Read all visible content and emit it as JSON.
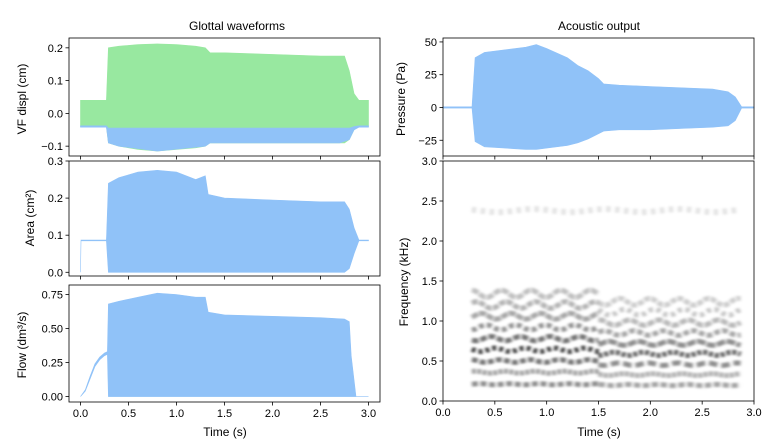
{
  "chart_data": [
    {
      "type": "area",
      "title": "Glottal waveforms",
      "xlabel": "",
      "ylabel": "VF displ (cm)",
      "xlim": [
        -0.12,
        3.12
      ],
      "ylim": [
        -0.13,
        0.23
      ],
      "xticks": [
        0.0,
        0.5,
        1.0,
        1.5,
        2.0,
        2.5,
        3.0
      ],
      "xtick_labels": [
        "",
        "",
        "",
        "",
        "",
        "",
        ""
      ],
      "yticks": [
        -0.1,
        0.0,
        0.1,
        0.2
      ],
      "ytick_labels": [
        "−0.1",
        "0.0",
        "0.1",
        "0.2"
      ],
      "colors": {
        "upper": "#98e8a0",
        "lower": "#90c2f8"
      },
      "series": [
        {
          "x": [
            0.0,
            0.27,
            0.29,
            0.4,
            0.6,
            0.8,
            1.0,
            1.2,
            1.3,
            1.35,
            1.5,
            2.0,
            2.5,
            2.75,
            2.8,
            2.85,
            2.9,
            3.0
          ],
          "upper": [
            0.04,
            0.04,
            0.2,
            0.205,
            0.21,
            0.212,
            0.21,
            0.205,
            0.2,
            0.185,
            0.185,
            0.18,
            0.175,
            0.175,
            0.13,
            0.06,
            0.04,
            0.04
          ],
          "lower": [
            -0.04,
            -0.04,
            -0.09,
            -0.1,
            -0.11,
            -0.115,
            -0.11,
            -0.105,
            -0.1,
            -0.09,
            -0.09,
            -0.09,
            -0.09,
            -0.09,
            -0.08,
            -0.05,
            -0.04,
            -0.04
          ]
        },
        {
          "x": [
            0.0,
            0.27,
            0.29,
            0.4,
            0.8,
            1.3,
            1.35,
            2.0,
            2.7,
            2.8,
            2.85,
            2.9,
            3.0
          ],
          "upper": [
            -0.038,
            -0.038,
            -0.045,
            -0.045,
            -0.045,
            -0.045,
            -0.045,
            -0.045,
            -0.045,
            -0.045,
            -0.04,
            -0.038,
            -0.038
          ],
          "lower": [
            -0.042,
            -0.042,
            -0.09,
            -0.1,
            -0.115,
            -0.1,
            -0.09,
            -0.09,
            -0.09,
            -0.08,
            -0.05,
            -0.042,
            -0.042
          ]
        }
      ]
    },
    {
      "type": "area",
      "title": "Acoustic output",
      "xlabel": "",
      "ylabel": "Pressure (Pa)",
      "xlim": [
        0.0,
        3.0
      ],
      "ylim": [
        -37,
        53
      ],
      "xticks": [
        0.0,
        0.5,
        1.0,
        1.5,
        2.0,
        2.5,
        3.0
      ],
      "xtick_labels": [
        "",
        "",
        "",
        "",
        "",
        "",
        ""
      ],
      "yticks": [
        -25,
        0,
        25,
        50
      ],
      "ytick_labels": [
        "−25",
        "0",
        "25",
        "50"
      ],
      "colors": {
        "fill": "#90c2f8"
      },
      "series": [
        {
          "x": [
            0.0,
            0.28,
            0.31,
            0.4,
            0.6,
            0.8,
            0.9,
            1.0,
            1.2,
            1.3,
            1.4,
            1.5,
            1.55,
            1.7,
            2.0,
            2.3,
            2.6,
            2.75,
            2.82,
            2.88,
            3.0
          ],
          "upper": [
            0.5,
            0.5,
            38,
            42,
            44,
            46,
            48,
            45,
            38,
            32,
            28,
            22,
            18,
            17,
            16,
            15,
            14,
            12,
            8,
            0.5,
            0.5
          ],
          "lower": [
            -0.5,
            -0.5,
            -26,
            -30,
            -31,
            -32,
            -32,
            -31,
            -29,
            -27,
            -24,
            -20,
            -18,
            -17,
            -17,
            -16,
            -15,
            -14,
            -10,
            -0.5,
            -0.5
          ]
        }
      ]
    },
    {
      "type": "area",
      "title": "",
      "xlabel": "",
      "ylabel": "Area (cm²)",
      "xlim": [
        -0.12,
        3.12
      ],
      "ylim": [
        -0.01,
        0.3
      ],
      "xticks": [
        0.0,
        0.5,
        1.0,
        1.5,
        2.0,
        2.5,
        3.0
      ],
      "xtick_labels": [
        "",
        "",
        "",
        "",
        "",
        "",
        ""
      ],
      "yticks": [
        0.0,
        0.1,
        0.2,
        0.3
      ],
      "ytick_labels": [
        "0.0",
        "0.1",
        "0.2",
        "0.3"
      ],
      "colors": {
        "fill": "#90c2f8"
      },
      "series": [
        {
          "x": [
            0.0,
            0.005,
            0.27,
            0.29,
            0.4,
            0.6,
            0.8,
            1.0,
            1.2,
            1.3,
            1.33,
            1.5,
            2.0,
            2.5,
            2.7,
            2.75,
            2.8,
            2.85,
            2.9,
            3.0
          ],
          "upper": [
            0.0,
            0.087,
            0.087,
            0.24,
            0.255,
            0.27,
            0.275,
            0.27,
            0.25,
            0.26,
            0.21,
            0.2,
            0.195,
            0.19,
            0.19,
            0.19,
            0.17,
            0.12,
            0.087,
            0.087
          ],
          "lower": [
            0.0,
            0.085,
            0.085,
            0.0,
            0.0,
            0.0,
            0.0,
            0.0,
            0.0,
            0.0,
            0.0,
            0.0,
            0.0,
            0.0,
            0.0,
            0.0,
            0.01,
            0.05,
            0.085,
            0.085
          ]
        }
      ]
    },
    {
      "type": "heatmap",
      "title": "",
      "xlabel": "Time (s)",
      "ylabel": "Frequency (kHz)",
      "xlim": [
        0.0,
        3.0
      ],
      "ylim": [
        0.0,
        3.0
      ],
      "xticks": [
        0.0,
        0.5,
        1.0,
        1.5,
        2.0,
        2.5,
        3.0
      ],
      "xtick_labels": [
        "0.0",
        "0.5",
        "1.0",
        "1.5",
        "2.0",
        "2.5",
        "3.0"
      ],
      "yticks": [
        0.0,
        0.5,
        1.0,
        1.5,
        2.0,
        2.5,
        3.0
      ],
      "ytick_labels": [
        "0.0",
        "0.5",
        "1.0",
        "1.5",
        "2.0",
        "2.5",
        "3.0"
      ],
      "colors": {
        "ink": "#000000"
      },
      "time_range": [
        0.28,
        2.87
      ],
      "break_time": 1.5,
      "harmonics_before_khz": [
        0.21,
        0.36,
        0.5,
        0.64,
        0.78,
        0.92,
        1.06,
        1.2,
        1.34
      ],
      "harmonics_after_khz": [
        0.2,
        0.33,
        0.46,
        0.59,
        0.72,
        0.85,
        0.98,
        1.11,
        1.24
      ],
      "harmonic_intensity": [
        0.45,
        0.4,
        0.55,
        0.85,
        0.55,
        0.45,
        0.35,
        0.3,
        0.25
      ],
      "formant_band_khz": 2.38,
      "formant_intensity": 0.12
    },
    {
      "type": "area",
      "title": "",
      "xlabel": "Time (s)",
      "ylabel": "Flow (dm³/s)",
      "xlim": [
        -0.12,
        3.12
      ],
      "ylim": [
        -0.04,
        0.82
      ],
      "xticks": [
        0.0,
        0.5,
        1.0,
        1.5,
        2.0,
        2.5,
        3.0
      ],
      "xtick_labels": [
        "0.0",
        "0.5",
        "1.0",
        "1.5",
        "2.0",
        "2.5",
        "3.0"
      ],
      "yticks": [
        0.0,
        0.25,
        0.5,
        0.75
      ],
      "ytick_labels": [
        "0.00",
        "0.25",
        "0.50",
        "0.75"
      ],
      "colors": {
        "fill": "#90c2f8"
      },
      "series": [
        {
          "x": [
            0.0,
            0.05,
            0.1,
            0.15,
            0.2,
            0.25,
            0.28,
            0.29,
            0.4,
            0.6,
            0.8,
            1.0,
            1.2,
            1.3,
            1.33,
            1.5,
            2.0,
            2.5,
            2.75,
            2.8,
            2.82,
            2.87,
            3.0
          ],
          "upper": [
            0.0,
            0.05,
            0.15,
            0.24,
            0.29,
            0.32,
            0.33,
            0.68,
            0.7,
            0.73,
            0.76,
            0.75,
            0.73,
            0.73,
            0.62,
            0.6,
            0.59,
            0.58,
            0.57,
            0.55,
            0.3,
            0.0,
            0.0
          ],
          "lower": [
            0.0,
            0.04,
            0.13,
            0.22,
            0.27,
            0.3,
            0.31,
            0.0,
            0.0,
            0.0,
            0.0,
            0.0,
            0.0,
            0.0,
            0.0,
            0.0,
            0.0,
            0.0,
            0.0,
            0.0,
            0.0,
            0.0,
            0.0
          ]
        }
      ]
    }
  ]
}
